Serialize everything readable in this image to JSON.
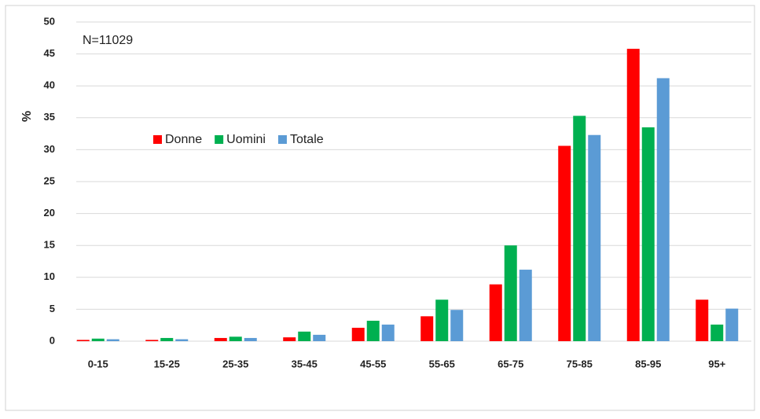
{
  "chart_data": {
    "type": "bar",
    "y_label": "%",
    "annotation": "N=11029",
    "categories": [
      "0-15",
      "15-25",
      "25-35",
      "35-45",
      "45-55",
      "55-65",
      "65-75",
      "75-85",
      "85-95",
      "95+"
    ],
    "series": [
      {
        "name": "Donne",
        "color": "#ff0000",
        "values": [
          0.2,
          0.2,
          0.5,
          0.6,
          2.1,
          3.9,
          8.9,
          30.6,
          45.8,
          6.5
        ]
      },
      {
        "name": "Uomini",
        "color": "#00b050",
        "values": [
          0.4,
          0.5,
          0.7,
          1.5,
          3.2,
          6.5,
          15.0,
          35.3,
          33.5,
          2.6
        ]
      },
      {
        "name": "Totale",
        "color": "#5b9bd5",
        "values": [
          0.3,
          0.3,
          0.5,
          1.0,
          2.6,
          4.9,
          11.2,
          32.3,
          41.2,
          5.1
        ]
      }
    ],
    "ylim": [
      0,
      50
    ],
    "yticks": [
      0,
      5,
      10,
      15,
      20,
      25,
      30,
      35,
      40,
      45,
      50
    ],
    "grid": true
  }
}
